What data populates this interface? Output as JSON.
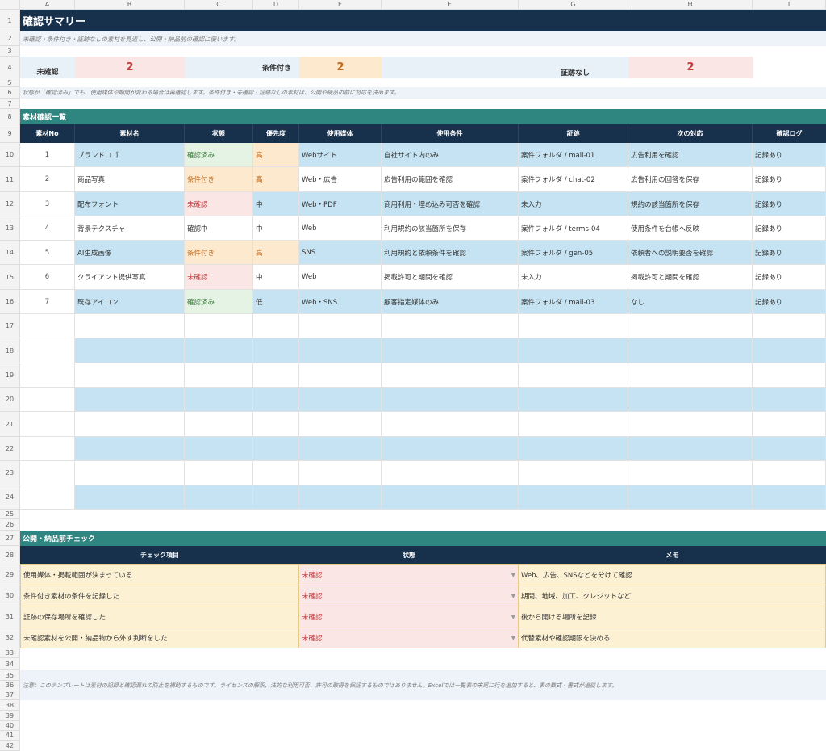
{
  "col_headers": [
    "A",
    "B",
    "C",
    "D",
    "E",
    "F",
    "G",
    "H",
    "I"
  ],
  "row_numbers": [
    "1",
    "2",
    "3",
    "4",
    "5",
    "6",
    "7",
    "8",
    "9",
    "10",
    "11",
    "12",
    "13",
    "14",
    "15",
    "16",
    "17",
    "18",
    "19",
    "20",
    "21",
    "22",
    "23",
    "24",
    "25",
    "26",
    "27",
    "28",
    "29",
    "30",
    "31",
    "32",
    "33",
    "34",
    "35",
    "36",
    "37",
    "38",
    "39",
    "40",
    "41",
    "42"
  ],
  "title": "確認サマリー",
  "subtitle": "未確認・条件付き・証跡なしの素材を見返し、公開・納品前の確認に使います。",
  "summary": {
    "unconfirmed_label": "未確認",
    "unconfirmed_value": "2",
    "conditional_label": "条件付き",
    "conditional_value": "2",
    "no_evidence_label": "証跡なし",
    "no_evidence_value": "2"
  },
  "note_row6": "状態が「確認済み」でも、使用媒体や期間が変わる場合は再確認します。条件付き・未確認・証跡なしの素材は、公開や納品の前に対応を決めます。",
  "section1_title": "素材確認一覧",
  "table_headers": [
    "素材No",
    "素材名",
    "状態",
    "優先度",
    "使用媒体",
    "使用条件",
    "証跡",
    "次の対応",
    "確認ログ"
  ],
  "rows": [
    {
      "no": "1",
      "name": "ブランドロゴ",
      "status": "確認済み",
      "priority": "高",
      "media": "Webサイト",
      "cond": "自社サイト内のみ",
      "evidence": "案件フォルダ / mail-01",
      "next": "広告利用を確認",
      "log": "記録あり"
    },
    {
      "no": "2",
      "name": "商品写真",
      "status": "条件付き",
      "priority": "高",
      "media": "Web・広告",
      "cond": "広告利用の範囲を確認",
      "evidence": "案件フォルダ / chat-02",
      "next": "広告利用の回答を保存",
      "log": "記録あり"
    },
    {
      "no": "3",
      "name": "配布フォント",
      "status": "未確認",
      "priority": "中",
      "media": "Web・PDF",
      "cond": "商用利用・埋め込み可否を確認",
      "evidence": "未入力",
      "next": "規約の該当箇所を保存",
      "log": "記録あり"
    },
    {
      "no": "4",
      "name": "背景テクスチャ",
      "status": "確認中",
      "priority": "中",
      "media": "Web",
      "cond": "利用規約の該当箇所を保存",
      "evidence": "案件フォルダ / terms-04",
      "next": "使用条件を台帳へ反映",
      "log": "記録あり"
    },
    {
      "no": "5",
      "name": "AI生成画像",
      "status": "条件付き",
      "priority": "高",
      "media": "SNS",
      "cond": "利用規約と依頼条件を確認",
      "evidence": "案件フォルダ / gen-05",
      "next": "依頼者への説明要否を確認",
      "log": "記録あり"
    },
    {
      "no": "6",
      "name": "クライアント提供写真",
      "status": "未確認",
      "priority": "中",
      "media": "Web",
      "cond": "掲載許可と期間を確認",
      "evidence": "未入力",
      "next": "掲載許可と期間を確認",
      "log": "記録あり"
    },
    {
      "no": "7",
      "name": "既存アイコン",
      "status": "確認済み",
      "priority": "低",
      "media": "Web・SNS",
      "cond": "顧客指定媒体のみ",
      "evidence": "案件フォルダ / mail-03",
      "next": "なし",
      "log": "記録あり"
    }
  ],
  "section2_title": "公開・納品前チェック",
  "check_headers": [
    "チェック項目",
    "状態",
    "メモ"
  ],
  "checks": [
    {
      "item": "使用媒体・掲載範囲が決まっている",
      "status": "未確認",
      "memo": "Web、広告、SNSなどを分けて確認"
    },
    {
      "item": "条件付き素材の条件を記録した",
      "status": "未確認",
      "memo": "期間、地域、加工、クレジットなど"
    },
    {
      "item": "証跡の保存場所を確認した",
      "status": "未確認",
      "memo": "後から開ける場所を記録"
    },
    {
      "item": "未確認素材を公開・納品物から外す判断をした",
      "status": "未確認",
      "memo": "代替素材や確認期限を決める"
    }
  ],
  "footer_note": "注意：このテンプレートは素材の記録と確認漏れの防止を補助するものです。ライセンスの解釈、法的な利用可否、許可の取得を保証するものではありません。Excelでは一覧表の末尾に行を追加すると、表の数式・書式が追従します。",
  "dropdown_icon": "chevron-down-icon",
  "colors": {
    "navy": "#17304b",
    "teal": "#2f8580",
    "row_blue": "#c5e3f2",
    "ok": "#3a7a3a",
    "warn": "#c0681a",
    "ng": "#c0393b"
  }
}
